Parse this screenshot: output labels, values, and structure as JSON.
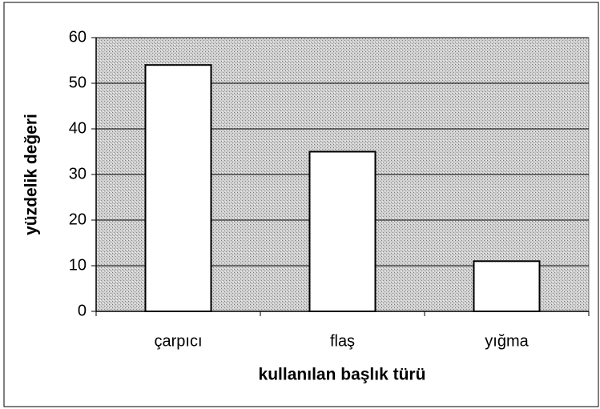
{
  "chart_data": {
    "type": "bar",
    "categories": [
      "çarpıcı",
      "flaş",
      "yığma"
    ],
    "values": [
      54,
      35,
      11
    ],
    "color": "#ffffff",
    "xlabel": "kullanılan başlık türü",
    "ylabel": "yüzdelik değeri",
    "ylim": [
      0,
      60
    ],
    "yticks": [
      0,
      10,
      20,
      30,
      40,
      50,
      60
    ],
    "grid": true
  }
}
